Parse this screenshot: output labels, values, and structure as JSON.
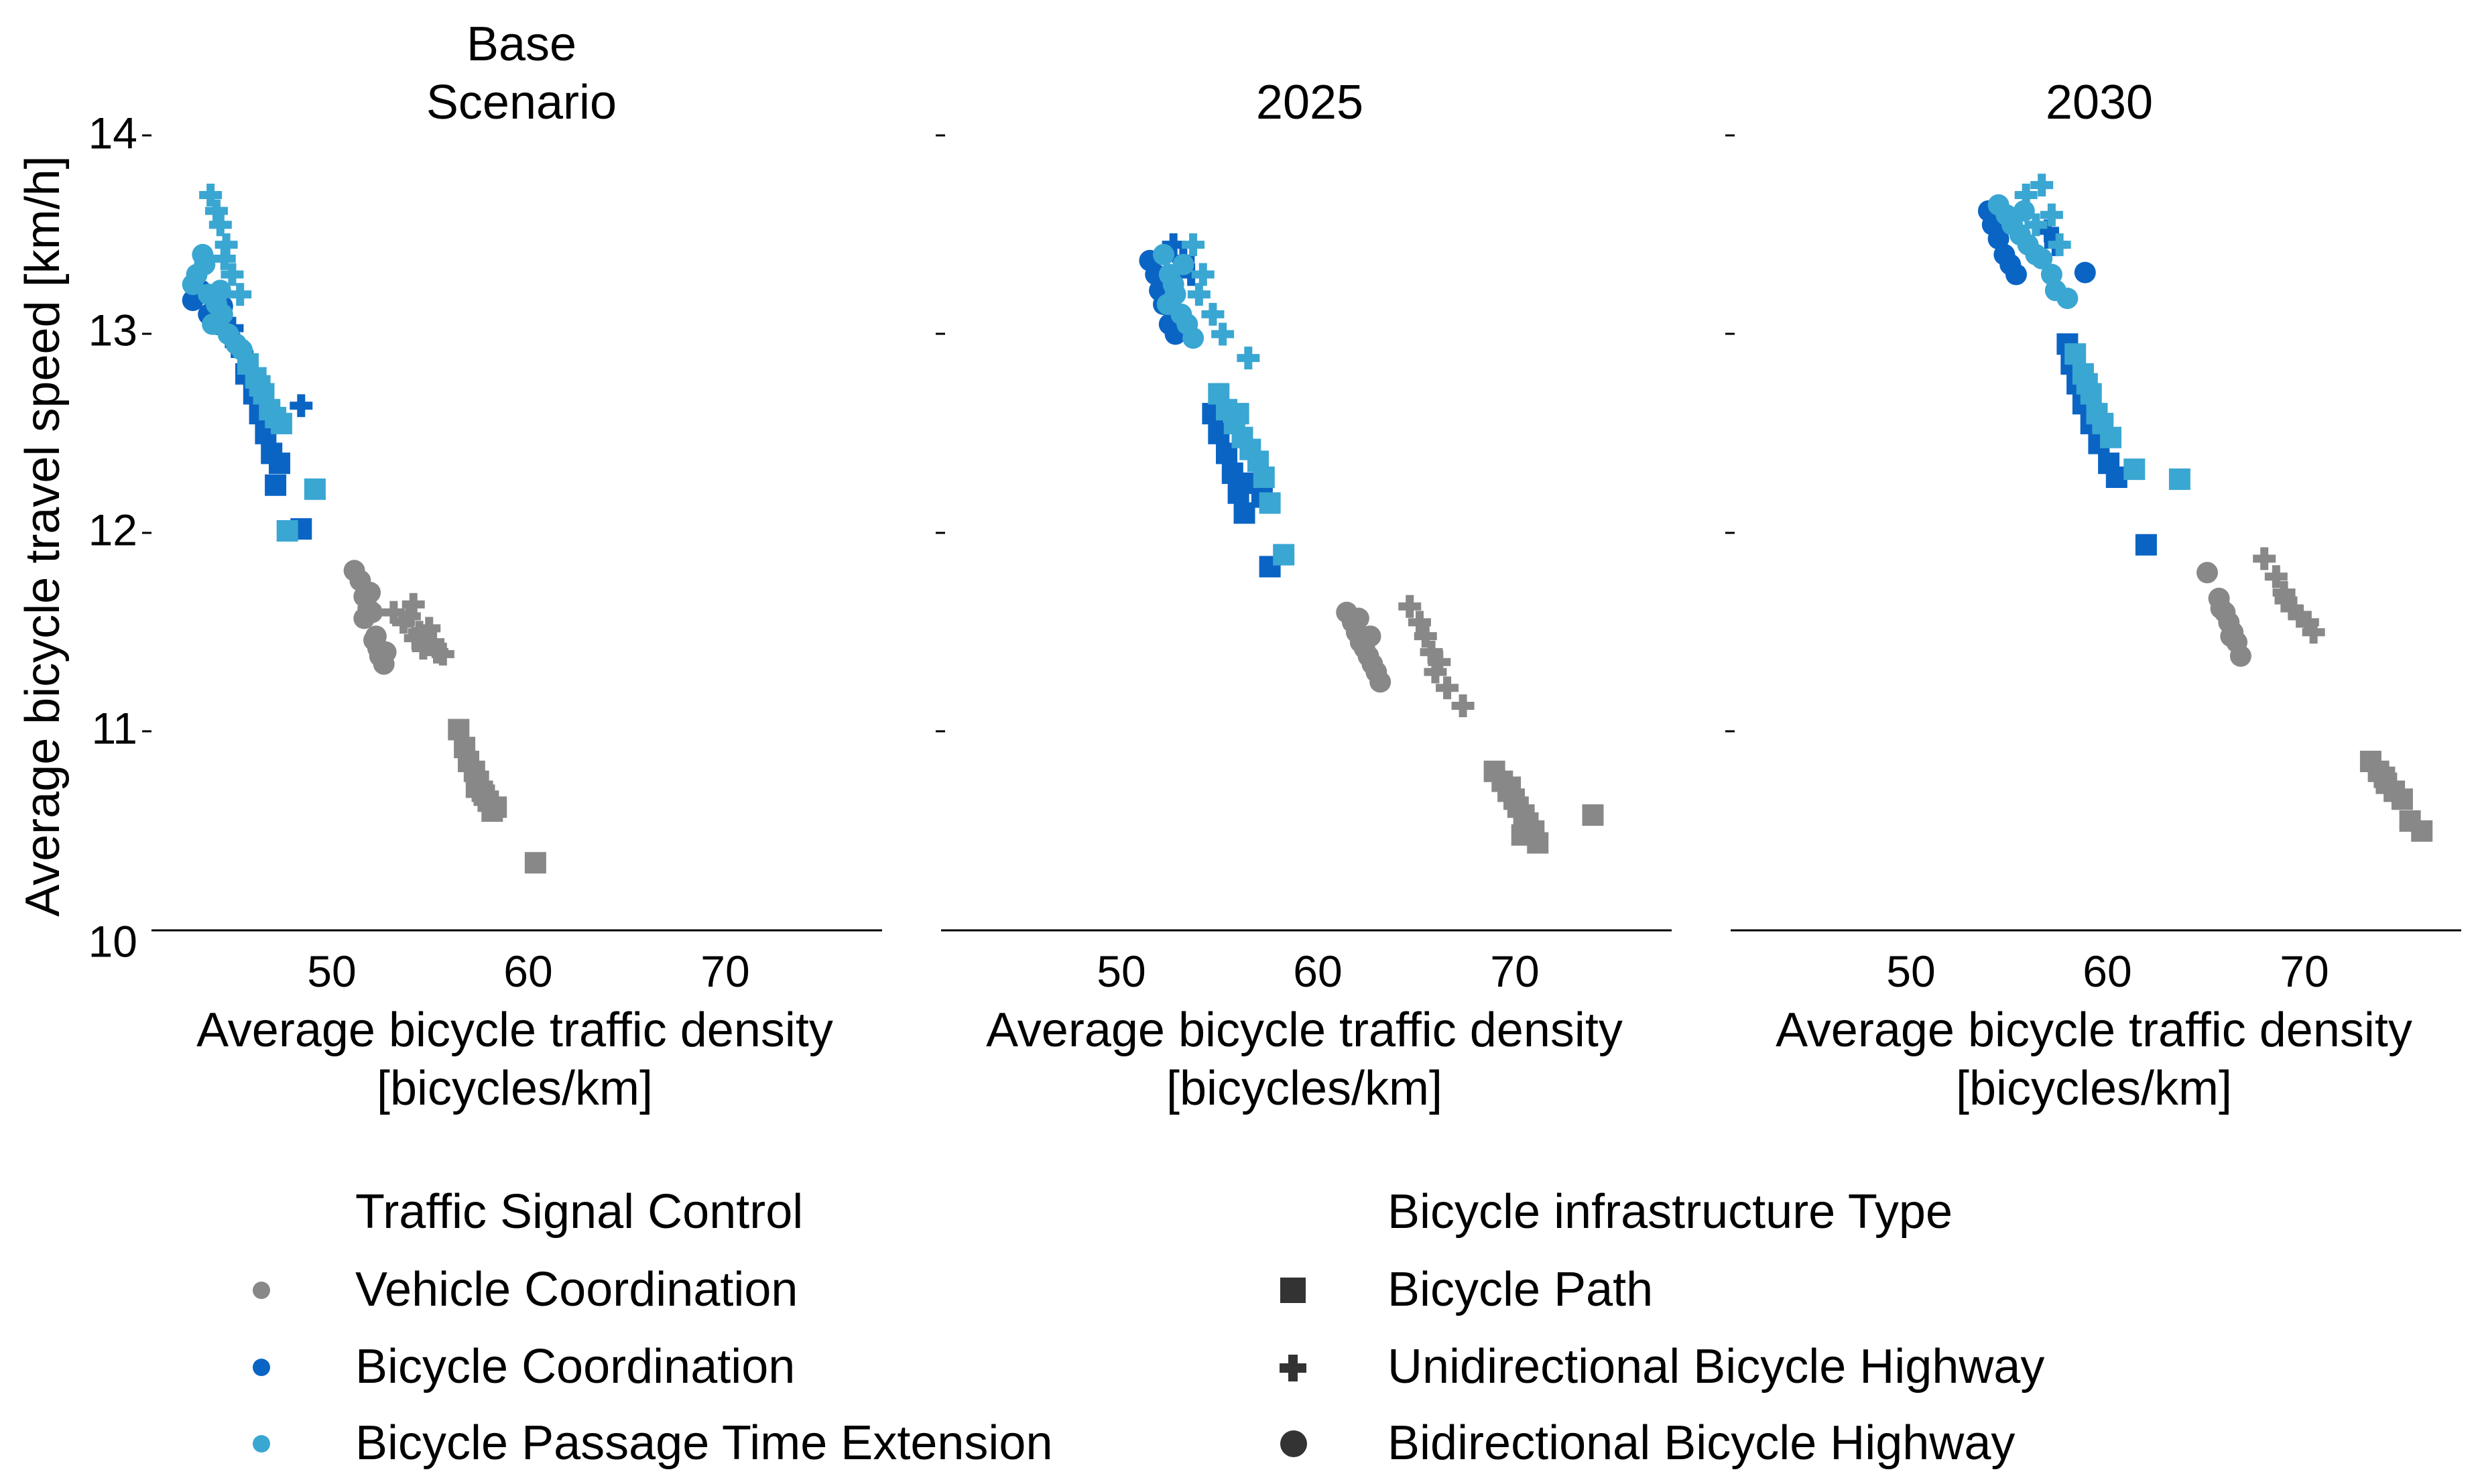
{
  "colors": {
    "vehicle": "#888888",
    "bicycle": "#0a64c4",
    "passage": "#3aa6d2",
    "legend_shape": "#333333",
    "axis": "#000000"
  },
  "y_axis": {
    "label": "Average bicycle travel speed [km/h]",
    "ticks": [
      "10",
      "11",
      "12",
      "13",
      "14"
    ]
  },
  "x_axis": {
    "label_line1": "Average bicycle traffic density",
    "label_line2": "[bicycles/km]",
    "ticks": [
      "50",
      "60",
      "70"
    ]
  },
  "panels": [
    {
      "title_line1": "Base",
      "title_line2": "Scenario"
    },
    {
      "title_line1": "",
      "title_line2": "2025"
    },
    {
      "title_line1": "",
      "title_line2": "2030"
    }
  ],
  "legend": {
    "signal_title": "Traffic Signal Control",
    "signal_items": [
      {
        "label": "Vehicle Coordination",
        "color": "#888888"
      },
      {
        "label": "Bicycle Coordination",
        "color": "#0a64c4"
      },
      {
        "label": "Bicycle Passage Time Extension",
        "color": "#3aa6d2"
      }
    ],
    "infra_title": "Bicycle infrastructure Type",
    "infra_items": [
      {
        "label": "Bicycle Path",
        "marker": "square"
      },
      {
        "label": "Unidirectional Bicycle Highway",
        "marker": "plus"
      },
      {
        "label": "Bidirectional Bicycle Highway",
        "marker": "circle"
      }
    ]
  },
  "chart_data": [
    {
      "type": "scatter",
      "title": "Base Scenario",
      "xlabel": "Average bicycle traffic density [bicycles/km]",
      "ylabel": "Average bicycle travel speed [km/h]",
      "xlim": [
        40.7,
        77.8
      ],
      "ylim": [
        10,
        14
      ],
      "grid": false,
      "series": [
        {
          "name": "Vehicle Coordination / Bidirectional Bicycle Highway",
          "color_key": "vehicle",
          "marker": "circle",
          "x": [
            51.0,
            51.3,
            51.5,
            51.7,
            51.5,
            51.9,
            52.0,
            52.2,
            52.3,
            52.5,
            52.1,
            52.6,
            51.8
          ],
          "y": [
            11.81,
            11.76,
            11.68,
            11.62,
            11.57,
            11.6,
            11.46,
            11.42,
            11.38,
            11.34,
            11.48,
            11.4,
            11.7
          ]
        },
        {
          "name": "Vehicle Coordination / Unidirectional Bicycle Highway",
          "color_key": "vehicle",
          "marker": "plus",
          "x": [
            53.0,
            53.5,
            54.0,
            54.3,
            54.8,
            55.0,
            55.2,
            53.8,
            54.5,
            55.5,
            54.1
          ],
          "y": [
            11.6,
            11.55,
            11.64,
            11.5,
            11.52,
            11.45,
            11.4,
            11.58,
            11.42,
            11.39,
            11.47
          ]
        },
        {
          "name": "Vehicle Coordination / Bicycle Path",
          "color_key": "vehicle",
          "marker": "square",
          "x": [
            56.3,
            56.6,
            56.8,
            57.1,
            57.3,
            57.5,
            57.8,
            58.0,
            58.2,
            57.2,
            57.6,
            60.2
          ],
          "y": [
            11.01,
            10.92,
            10.85,
            10.8,
            10.75,
            10.7,
            10.65,
            10.6,
            10.62,
            10.72,
            10.68,
            10.34
          ]
        },
        {
          "name": "Bicycle Coordination / Bidirectional Bicycle Highway",
          "color_key": "bicycle",
          "marker": "circle",
          "x": [
            42.8,
            43.2,
            43.6,
            44.0,
            44.3
          ],
          "y": [
            13.17,
            13.22,
            13.1,
            13.05,
            13.14
          ]
        },
        {
          "name": "Bicycle Coordination / Unidirectional Bicycle Highway",
          "color_key": "bicycle",
          "marker": "plus",
          "x": [
            45.0,
            48.3,
            44.8,
            45.3
          ],
          "y": [
            12.95,
            12.64,
            13.03,
            12.9
          ]
        },
        {
          "name": "Bicycle Coordination / Bicycle Path",
          "color_key": "bicycle",
          "marker": "square",
          "x": [
            45.5,
            45.9,
            46.2,
            46.5,
            46.8,
            47.2,
            47.0,
            48.3,
            46.3
          ],
          "y": [
            12.8,
            12.7,
            12.6,
            12.5,
            12.4,
            12.35,
            12.24,
            12.02,
            12.65
          ]
        },
        {
          "name": "Bicycle Passage Time Extension / Bidirectional Bicycle Highway",
          "color_key": "passage",
          "marker": "circle",
          "x": [
            42.8,
            43.0,
            43.3,
            43.6,
            44.0,
            44.3,
            44.6,
            45.0,
            45.3,
            43.4,
            44.2,
            43.8
          ],
          "y": [
            13.25,
            13.3,
            13.4,
            13.2,
            13.15,
            13.1,
            13.0,
            12.95,
            12.92,
            13.35,
            13.22,
            13.05
          ]
        },
        {
          "name": "Bicycle Passage Time Extension / Unidirectional Bicycle Highway",
          "color_key": "passage",
          "marker": "plus",
          "x": [
            43.7,
            44.0,
            44.2,
            44.5,
            44.8,
            45.2,
            44.4
          ],
          "y": [
            13.7,
            13.62,
            13.55,
            13.45,
            13.3,
            13.2,
            13.38
          ]
        },
        {
          "name": "Bicycle Passage Time Extension / Bicycle Path",
          "color_key": "passage",
          "marker": "square",
          "x": [
            45.6,
            46.0,
            46.4,
            46.7,
            47.0,
            47.3,
            46.2,
            49.0,
            47.6
          ],
          "y": [
            12.85,
            12.78,
            12.7,
            12.62,
            12.58,
            12.55,
            12.74,
            12.22,
            12.01
          ]
        }
      ]
    },
    {
      "type": "scatter",
      "title": "2025",
      "xlabel": "Average bicycle traffic density [bicycles/km]",
      "ylabel": "Average bicycle travel speed [km/h]",
      "xlim": [
        40.7,
        77.8
      ],
      "ylim": [
        10,
        14
      ],
      "grid": false,
      "series": [
        {
          "name": "Vehicle Coordination / Bidirectional Bicycle Highway",
          "color_key": "vehicle",
          "marker": "circle",
          "x": [
            61.3,
            61.6,
            61.8,
            62.0,
            62.2,
            62.4,
            62.6,
            62.8,
            63.0,
            61.9,
            62.5
          ],
          "y": [
            11.6,
            11.55,
            11.5,
            11.45,
            11.42,
            11.38,
            11.34,
            11.3,
            11.25,
            11.57,
            11.48
          ]
        },
        {
          "name": "Vehicle Coordination / Unidirectional Bicycle Highway",
          "color_key": "vehicle",
          "marker": "plus",
          "x": [
            64.5,
            65.0,
            65.3,
            65.6,
            66.0,
            66.4,
            67.2,
            65.8
          ],
          "y": [
            11.63,
            11.55,
            11.48,
            11.4,
            11.35,
            11.22,
            11.13,
            11.3
          ]
        },
        {
          "name": "Vehicle Coordination / Bicycle Path",
          "color_key": "vehicle",
          "marker": "square",
          "x": [
            68.8,
            69.2,
            69.5,
            69.8,
            70.0,
            70.3,
            70.5,
            70.8,
            71.0,
            73.8,
            69.6,
            70.2
          ],
          "y": [
            10.8,
            10.75,
            10.7,
            10.66,
            10.62,
            10.58,
            10.54,
            10.5,
            10.44,
            10.58,
            10.72,
            10.48
          ]
        },
        {
          "name": "Bicycle Coordination / Bidirectional Bicycle Highway",
          "color_key": "bicycle",
          "marker": "circle",
          "x": [
            51.3,
            51.6,
            52.0,
            52.3,
            52.6,
            51.8
          ],
          "y": [
            13.37,
            13.3,
            13.15,
            13.05,
            13.0,
            13.22
          ]
        },
        {
          "name": "Bicycle Coordination / Unidirectional Bicycle Highway",
          "color_key": "bicycle",
          "marker": "plus",
          "x": [
            52.5,
            53.0,
            53.4
          ],
          "y": [
            13.45,
            13.38,
            13.3
          ]
        },
        {
          "name": "Bicycle Coordination / Bicycle Path",
          "color_key": "bicycle",
          "marker": "square",
          "x": [
            54.5,
            54.8,
            55.2,
            55.5,
            55.8,
            56.1,
            56.5,
            57.0,
            57.4
          ],
          "y": [
            12.6,
            12.5,
            12.4,
            12.3,
            12.2,
            12.1,
            12.25,
            12.18,
            11.83
          ]
        },
        {
          "name": "Bicycle Passage Time Extension / Bidirectional Bicycle Highway",
          "color_key": "passage",
          "marker": "circle",
          "x": [
            52.0,
            52.3,
            52.6,
            52.9,
            53.2,
            53.5,
            52.5,
            53.0,
            52.2
          ],
          "y": [
            13.4,
            13.3,
            13.2,
            13.1,
            13.05,
            12.98,
            13.25,
            13.35,
            13.15
          ]
        },
        {
          "name": "Bicycle Passage Time Extension / Unidirectional Bicycle Highway",
          "color_key": "passage",
          "marker": "plus",
          "x": [
            53.5,
            54.0,
            54.5,
            55.0,
            56.3,
            53.8
          ],
          "y": [
            13.45,
            13.3,
            13.1,
            13.0,
            12.88,
            13.2
          ]
        },
        {
          "name": "Bicycle Passage Time Extension / Bicycle Path",
          "color_key": "passage",
          "marker": "square",
          "x": [
            54.8,
            55.2,
            55.6,
            56.0,
            56.4,
            56.8,
            57.1,
            57.4,
            58.1,
            55.8
          ],
          "y": [
            12.7,
            12.62,
            12.55,
            12.48,
            12.42,
            12.36,
            12.28,
            12.15,
            11.89,
            12.6
          ]
        }
      ]
    },
    {
      "type": "scatter",
      "title": "2030",
      "xlabel": "Average bicycle traffic density [bicycles/km]",
      "ylabel": "Average bicycle travel speed [km/h]",
      "xlim": [
        40.7,
        77.8
      ],
      "ylim": [
        10,
        14
      ],
      "grid": false,
      "series": [
        {
          "name": "Vehicle Coordination / Bidirectional Bicycle Highway",
          "color_key": "vehicle",
          "marker": "circle",
          "x": [
            64.9,
            65.5,
            65.8,
            66.0,
            66.2,
            66.4,
            66.6,
            65.6,
            66.1
          ],
          "y": [
            11.8,
            11.67,
            11.6,
            11.55,
            11.5,
            11.45,
            11.38,
            11.62,
            11.48
          ]
        },
        {
          "name": "Vehicle Coordination / Unidirectional Bicycle Highway",
          "color_key": "vehicle",
          "marker": "plus",
          "x": [
            67.8,
            68.4,
            68.8,
            69.2,
            69.6,
            70.0,
            70.3,
            68.9
          ],
          "y": [
            11.87,
            11.78,
            11.7,
            11.62,
            11.58,
            11.55,
            11.5,
            11.66
          ]
        },
        {
          "name": "Vehicle Coordination / Bicycle Path",
          "color_key": "vehicle",
          "marker": "square",
          "x": [
            73.2,
            73.6,
            74.0,
            74.4,
            74.8,
            75.2,
            75.8,
            73.9
          ],
          "y": [
            10.85,
            10.8,
            10.74,
            10.7,
            10.66,
            10.55,
            10.5,
            10.77
          ]
        },
        {
          "name": "Bicycle Coordination / Bidirectional Bicycle Highway",
          "color_key": "bicycle",
          "marker": "circle",
          "x": [
            53.8,
            54.0,
            54.3,
            54.6,
            54.9,
            55.2,
            58.7
          ],
          "y": [
            13.62,
            13.55,
            13.48,
            13.4,
            13.35,
            13.3,
            13.31
          ]
        },
        {
          "name": "Bicycle Coordination / Unidirectional Bicycle Highway",
          "color_key": "bicycle",
          "marker": "plus",
          "x": [
            56.8,
            57.2
          ],
          "y": [
            13.52,
            13.45
          ]
        },
        {
          "name": "Bicycle Coordination / Bicycle Path",
          "color_key": "bicycle",
          "marker": "square",
          "x": [
            57.8,
            58.0,
            58.3,
            58.6,
            59.0,
            59.4,
            59.9,
            60.3,
            61.8
          ],
          "y": [
            12.95,
            12.85,
            12.75,
            12.65,
            12.55,
            12.45,
            12.35,
            12.28,
            11.94
          ]
        },
        {
          "name": "Bicycle Passage Time Extension / Bidirectional Bicycle Highway",
          "color_key": "passage",
          "marker": "circle",
          "x": [
            54.3,
            54.7,
            55.0,
            55.4,
            55.8,
            56.2,
            56.5,
            57.0,
            57.8,
            57.2,
            55.6
          ],
          "y": [
            13.65,
            13.6,
            13.55,
            13.5,
            13.45,
            13.4,
            13.38,
            13.3,
            13.18,
            13.22,
            13.62
          ]
        },
        {
          "name": "Bicycle Passage Time Extension / Unidirectional Bicycle Highway",
          "color_key": "passage",
          "marker": "plus",
          "x": [
            55.7,
            56.5,
            57.0,
            57.4,
            56.2
          ],
          "y": [
            13.7,
            13.75,
            13.6,
            13.45,
            13.55
          ]
        },
        {
          "name": "Bicycle Passage Time Extension / Bicycle Path",
          "color_key": "passage",
          "marker": "square",
          "x": [
            58.2,
            58.6,
            59.0,
            59.3,
            59.6,
            60.0,
            61.2,
            63.5,
            58.8
          ],
          "y": [
            12.9,
            12.8,
            12.7,
            12.6,
            12.55,
            12.48,
            12.32,
            12.27,
            12.75
          ]
        }
      ]
    }
  ]
}
